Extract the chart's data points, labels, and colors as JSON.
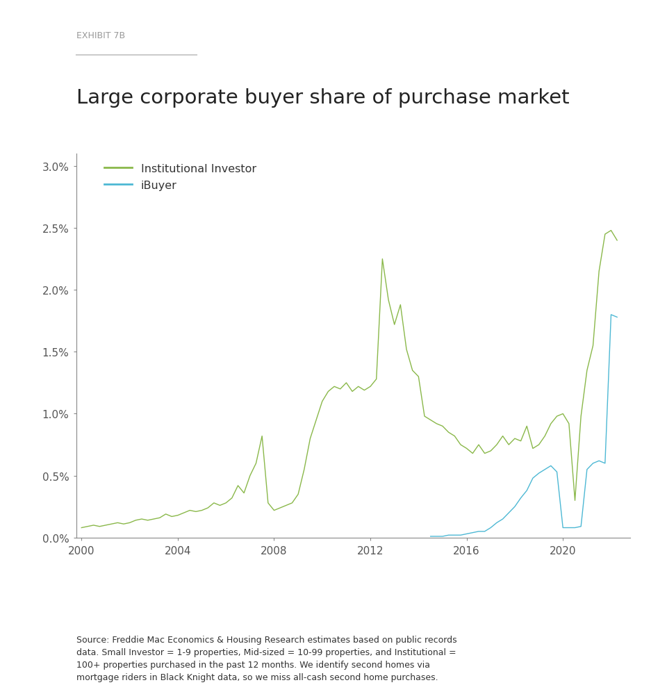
{
  "exhibit_label": "EXHIBIT 7B",
  "title": "Large corporate buyer share of purchase market",
  "source_text": "Source: Freddie Mac Economics & Housing Research estimates based on public records\ndata. Small Investor = 1-9 properties, Mid-sized = 10-99 properties, and Institutional =\n100+ properties purchased in the past 12 months. We identify second homes via\nmortgage riders in Black Knight data, so we miss all-cash second home purchases.",
  "institutional_color": "#8ab84a",
  "ibuyer_color": "#4db8d4",
  "background_color": "#ffffff",
  "ylim": [
    0.0,
    0.031
  ],
  "yticks": [
    0.0,
    0.005,
    0.01,
    0.015,
    0.02,
    0.025,
    0.03
  ],
  "ytick_labels": [
    "0.0%",
    "0.5%",
    "1.0%",
    "1.5%",
    "2.0%",
    "2.5%",
    "3.0%"
  ],
  "xlim": [
    1999.8,
    2022.8
  ],
  "xticks": [
    2000,
    2004,
    2008,
    2012,
    2016,
    2020
  ],
  "legend_labels": [
    "Institutional Investor",
    "iBuyer"
  ],
  "institutional_x": [
    2000.0,
    2000.25,
    2000.5,
    2000.75,
    2001.0,
    2001.25,
    2001.5,
    2001.75,
    2002.0,
    2002.25,
    2002.5,
    2002.75,
    2003.0,
    2003.25,
    2003.5,
    2003.75,
    2004.0,
    2004.25,
    2004.5,
    2004.75,
    2005.0,
    2005.25,
    2005.5,
    2005.75,
    2006.0,
    2006.25,
    2006.5,
    2006.75,
    2007.0,
    2007.25,
    2007.5,
    2007.75,
    2008.0,
    2008.25,
    2008.5,
    2008.75,
    2009.0,
    2009.25,
    2009.5,
    2009.75,
    2010.0,
    2010.25,
    2010.5,
    2010.75,
    2011.0,
    2011.25,
    2011.5,
    2011.75,
    2012.0,
    2012.25,
    2012.5,
    2012.75,
    2013.0,
    2013.25,
    2013.5,
    2013.75,
    2014.0,
    2014.25,
    2014.5,
    2014.75,
    2015.0,
    2015.25,
    2015.5,
    2015.75,
    2016.0,
    2016.25,
    2016.5,
    2016.75,
    2017.0,
    2017.25,
    2017.5,
    2017.75,
    2018.0,
    2018.25,
    2018.5,
    2018.75,
    2019.0,
    2019.25,
    2019.5,
    2019.75,
    2020.0,
    2020.25,
    2020.5,
    2020.75,
    2021.0,
    2021.25,
    2021.5,
    2021.75,
    2022.0,
    2022.25
  ],
  "institutional_y": [
    0.0008,
    0.0009,
    0.001,
    0.0009,
    0.001,
    0.0011,
    0.0012,
    0.0011,
    0.0012,
    0.0014,
    0.0015,
    0.0014,
    0.0015,
    0.0016,
    0.0019,
    0.0017,
    0.0018,
    0.002,
    0.0022,
    0.0021,
    0.0022,
    0.0024,
    0.0028,
    0.0026,
    0.0028,
    0.0032,
    0.0042,
    0.0036,
    0.005,
    0.006,
    0.0082,
    0.0028,
    0.0022,
    0.0024,
    0.0026,
    0.0028,
    0.0035,
    0.0055,
    0.008,
    0.0095,
    0.011,
    0.0118,
    0.0122,
    0.012,
    0.0125,
    0.0118,
    0.0122,
    0.0119,
    0.0122,
    0.0128,
    0.0225,
    0.0192,
    0.0172,
    0.0188,
    0.0152,
    0.0135,
    0.013,
    0.0098,
    0.0095,
    0.0092,
    0.009,
    0.0085,
    0.0082,
    0.0075,
    0.0072,
    0.0068,
    0.0075,
    0.0068,
    0.007,
    0.0075,
    0.0082,
    0.0075,
    0.008,
    0.0078,
    0.009,
    0.0072,
    0.0075,
    0.0082,
    0.0092,
    0.0098,
    0.01,
    0.0092,
    0.003,
    0.0098,
    0.0135,
    0.0155,
    0.0215,
    0.0245,
    0.0248,
    0.024
  ],
  "ibuyer_x": [
    2014.5,
    2014.75,
    2015.0,
    2015.25,
    2015.5,
    2015.75,
    2016.0,
    2016.25,
    2016.5,
    2016.75,
    2017.0,
    2017.25,
    2017.5,
    2017.75,
    2018.0,
    2018.25,
    2018.5,
    2018.75,
    2019.0,
    2019.25,
    2019.5,
    2019.75,
    2020.0,
    2020.25,
    2020.5,
    2020.75,
    2021.0,
    2021.25,
    2021.5,
    2021.75,
    2022.0,
    2022.25
  ],
  "ibuyer_y": [
    0.0001,
    0.0001,
    0.0001,
    0.0002,
    0.0002,
    0.0002,
    0.0003,
    0.0004,
    0.0005,
    0.0005,
    0.0008,
    0.0012,
    0.0015,
    0.002,
    0.0025,
    0.0032,
    0.0038,
    0.0048,
    0.0052,
    0.0055,
    0.0058,
    0.0053,
    0.0008,
    0.0008,
    0.0008,
    0.0009,
    0.0055,
    0.006,
    0.0062,
    0.006,
    0.018,
    0.0178
  ]
}
